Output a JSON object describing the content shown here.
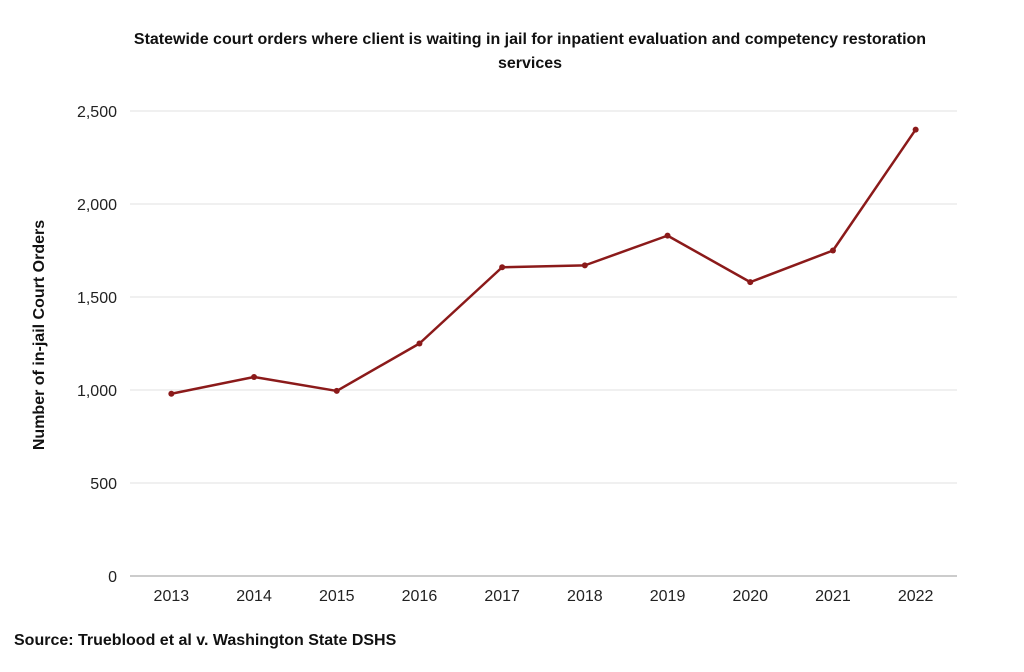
{
  "chart_data": {
    "type": "line",
    "title": "Statewide court orders where client is waiting in jail for inpatient evaluation and competency restoration services",
    "xlabel": "",
    "ylabel": "Number of in-jail Court Orders",
    "categories": [
      "2013",
      "2014",
      "2015",
      "2016",
      "2017",
      "2018",
      "2019",
      "2020",
      "2021",
      "2022"
    ],
    "series": [
      {
        "values": [
          980,
          1070,
          995,
          1250,
          1660,
          1670,
          1830,
          1580,
          1750,
          2400
        ],
        "color": "#8b1a1a"
      }
    ],
    "ylim": [
      0,
      2500
    ],
    "yticks": [
      0,
      500,
      1000,
      1500,
      2000,
      2500
    ],
    "ytick_labels": [
      "0",
      "500",
      "1,000",
      "1,500",
      "2,000",
      "2,500"
    ],
    "grid": "horizontal",
    "legend": "none"
  },
  "source": "Source: Trueblood et al v. Washington State DSHS"
}
